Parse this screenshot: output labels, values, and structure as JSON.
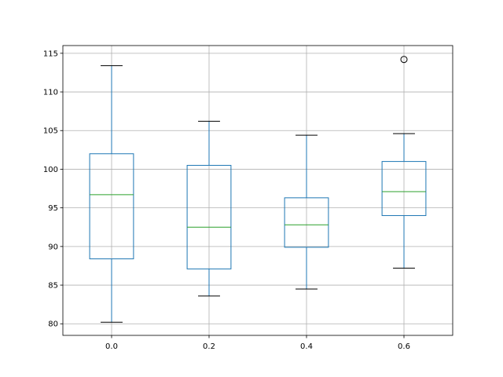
{
  "chart_data": {
    "type": "boxplot",
    "title": "",
    "xlabel": "",
    "ylabel": "",
    "categories": [
      "0.0",
      "0.2",
      "0.4",
      "0.6"
    ],
    "ylim": [
      78.5,
      116.0
    ],
    "yticks": [
      80,
      85,
      90,
      95,
      100,
      105,
      110,
      115
    ],
    "grid": true,
    "boxes": [
      {
        "whislo": 80.2,
        "q1": 88.4,
        "med": 96.7,
        "q3": 102.0,
        "whishi": 113.4,
        "fliers": []
      },
      {
        "whislo": 83.6,
        "q1": 87.1,
        "med": 92.5,
        "q3": 100.5,
        "whishi": 106.2,
        "fliers": []
      },
      {
        "whislo": 84.5,
        "q1": 89.9,
        "med": 92.8,
        "q3": 96.3,
        "whishi": 104.4,
        "fliers": []
      },
      {
        "whislo": 87.2,
        "q1": 94.0,
        "med": 97.1,
        "q3": 101.0,
        "whishi": 104.6,
        "fliers": [
          114.2
        ]
      }
    ],
    "colors": {
      "box": "#1f77b4",
      "median": "#2ca02c",
      "whisker_cap": "#000000",
      "grid": "#b0b0b0",
      "axes": "#000000"
    }
  }
}
